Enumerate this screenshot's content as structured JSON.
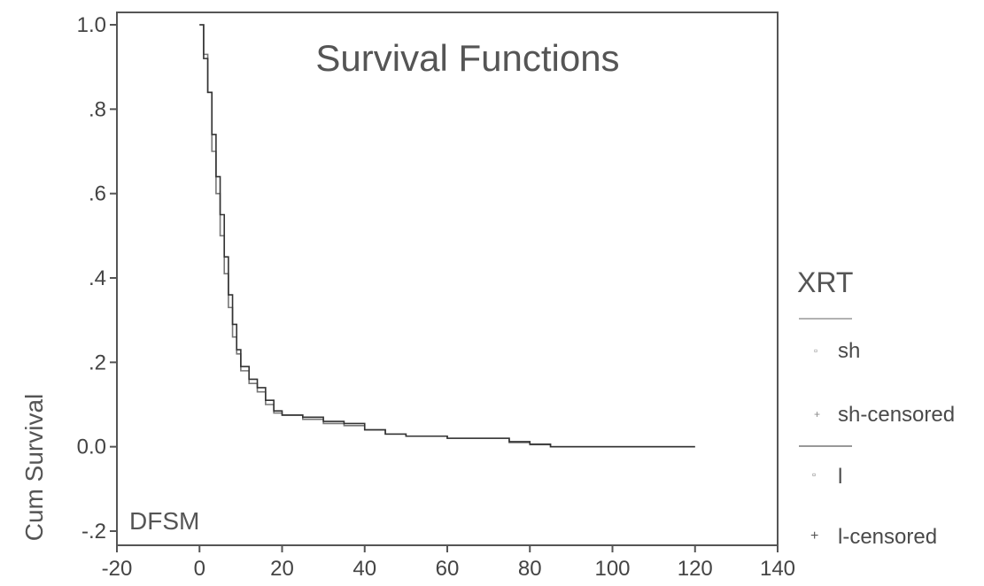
{
  "chart_data": {
    "type": "line",
    "title": "Survival Functions",
    "ylabel": "Cum Survival",
    "xlabel": "",
    "annotation": "DFSM",
    "xlim": [
      -20,
      140
    ],
    "ylim": [
      -0.2,
      1.0
    ],
    "x_ticks": [
      -20,
      0,
      20,
      40,
      60,
      80,
      100,
      120,
      140
    ],
    "y_ticks": [
      {
        "value": 1.0,
        "label": "1.0"
      },
      {
        "value": 0.8,
        "label": ".8"
      },
      {
        "value": 0.6,
        "label": ".6"
      },
      {
        "value": 0.4,
        "label": ".4"
      },
      {
        "value": 0.2,
        "label": ".2"
      },
      {
        "value": 0.0,
        "label": "0.0"
      },
      {
        "value": -0.2,
        "label": "-.2"
      }
    ],
    "grid": false,
    "legend": {
      "title": "XRT",
      "position": "right",
      "entries": [
        "sh",
        "sh-censored",
        "l",
        "l-censored"
      ]
    },
    "series": [
      {
        "name": "sh",
        "color": "#777777",
        "x": [
          0,
          1,
          2,
          3,
          4,
          5,
          6,
          7,
          8,
          9,
          10,
          12,
          14,
          16,
          18,
          20,
          25,
          30,
          35,
          40,
          45,
          50,
          60,
          70,
          75,
          80,
          85,
          100,
          120
        ],
        "y": [
          1.0,
          0.93,
          0.84,
          0.7,
          0.6,
          0.5,
          0.41,
          0.33,
          0.26,
          0.22,
          0.18,
          0.15,
          0.13,
          0.1,
          0.08,
          0.075,
          0.065,
          0.055,
          0.05,
          0.04,
          0.03,
          0.025,
          0.02,
          0.02,
          0.01,
          0.005,
          0.0,
          0.0,
          0.0
        ]
      },
      {
        "name": "l",
        "color": "#333333",
        "x": [
          0,
          1,
          2,
          3,
          4,
          5,
          6,
          7,
          8,
          9,
          10,
          12,
          14,
          16,
          18,
          20,
          25,
          30,
          35,
          40,
          45,
          50,
          60,
          70,
          75,
          80,
          85,
          100,
          120
        ],
        "y": [
          1.0,
          0.92,
          0.84,
          0.74,
          0.64,
          0.55,
          0.45,
          0.36,
          0.29,
          0.23,
          0.19,
          0.16,
          0.14,
          0.11,
          0.085,
          0.075,
          0.07,
          0.06,
          0.055,
          0.04,
          0.03,
          0.025,
          0.02,
          0.02,
          0.012,
          0.006,
          0.0,
          0.0,
          0.0
        ]
      }
    ]
  }
}
